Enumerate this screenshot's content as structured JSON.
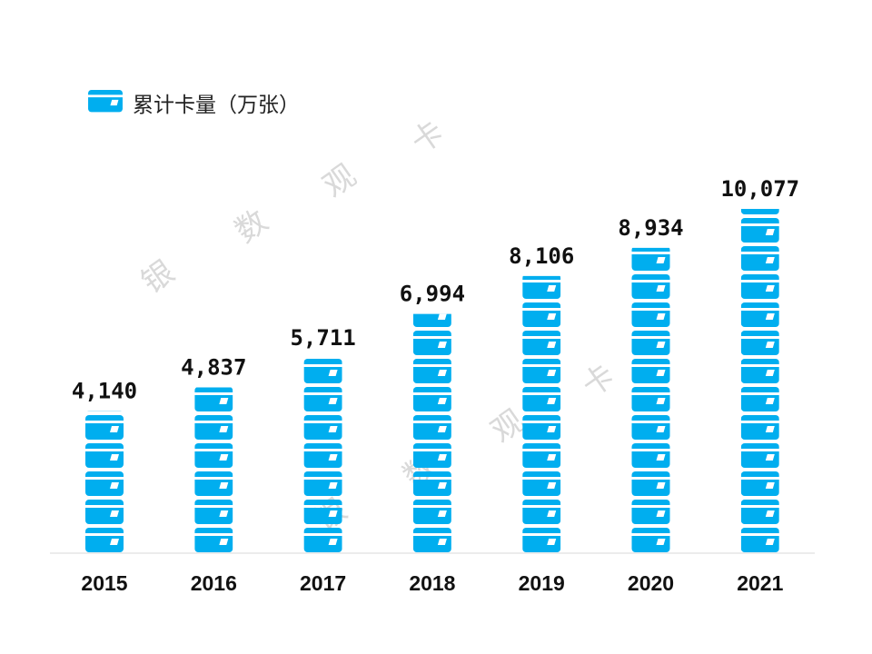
{
  "legend": {
    "label": "累计卡量（万张）",
    "icon": "bank-card-icon"
  },
  "watermark": [
    "银",
    "数",
    "观",
    "卡"
  ],
  "colors": {
    "bar": "#00AEEF",
    "label": "#111111",
    "axis": "#d9d9d9"
  },
  "chart_data": {
    "type": "bar",
    "categories": [
      "2015",
      "2016",
      "2017",
      "2018",
      "2019",
      "2020",
      "2021"
    ],
    "series": [
      {
        "name": "累计卡量（万张）",
        "values": [
          4140,
          4837,
          5711,
          6994,
          8106,
          8934,
          10077
        ]
      }
    ],
    "data_labels": [
      "4,140",
      "4,837",
      "5,711",
      "6,994",
      "8,106",
      "8,934",
      "10,077"
    ],
    "ylim": [
      0,
      10300
    ],
    "grid": false,
    "legend_position": "top-left"
  }
}
